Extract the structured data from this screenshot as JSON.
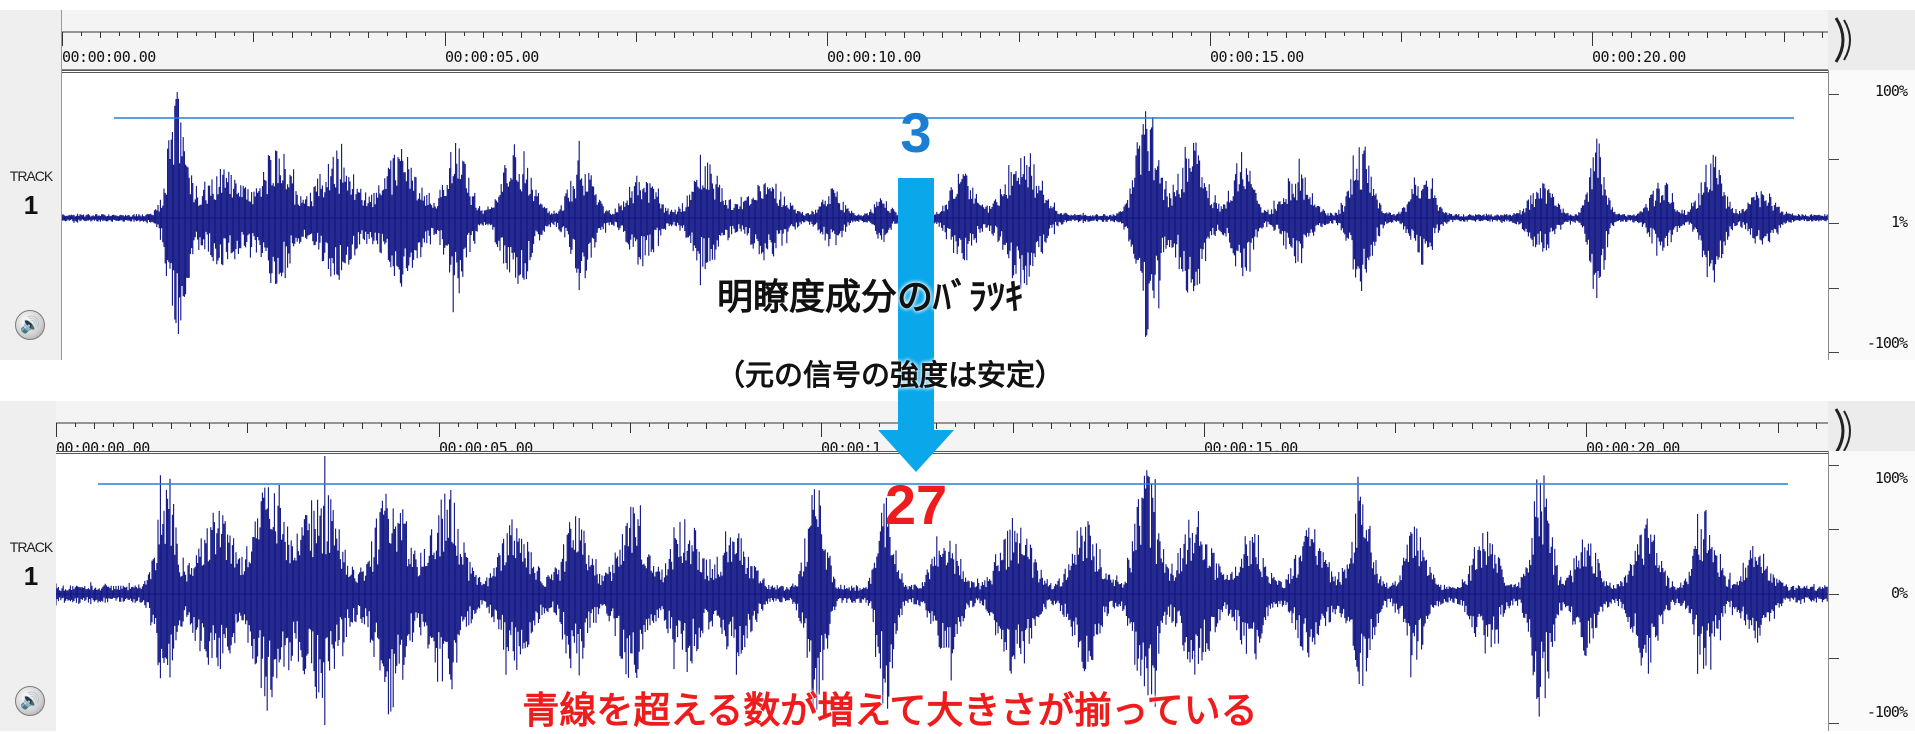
{
  "top_track": {
    "label": "TRACK",
    "number": "1",
    "time_labels": [
      "00:00:00.00",
      "00:00:05.00",
      "00:00:10.00",
      "00:00:15.00",
      "00:00:20.00"
    ],
    "scale_labels": [
      "100%",
      "1%",
      "-100%"
    ],
    "count": "3"
  },
  "bottom_track": {
    "label": "TRACK",
    "number": "1",
    "time_labels": [
      "00:00:00.00",
      "00:00:05.00",
      "00:00:1",
      "00:00:15.00",
      "00:00:20.00"
    ],
    "scale_labels": [
      "100%",
      "0%",
      "-100%"
    ],
    "count": "27"
  },
  "annotations": {
    "caption_line1": "明瞭度成分のﾊﾞﾗﾂｷ",
    "caption_line2": "（元の信号の強度は安定）",
    "bottom_note": "青線を超える数が増えて大きさが揃っている"
  },
  "colors": {
    "waveform": "#0d1283",
    "threshold_line": "#2a7fd0",
    "arrow": "#0aa8ea",
    "count_top": "#1a7fd4",
    "count_bottom": "#ee1c1c",
    "note": "#ee1c1c"
  },
  "icons": {
    "speaker": "speaker-icon",
    "scroll": "chevron-right-icon"
  }
}
